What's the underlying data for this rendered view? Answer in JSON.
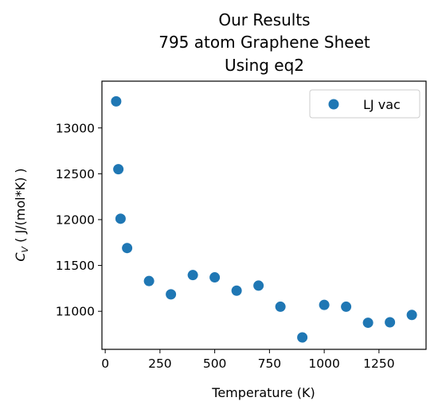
{
  "chart_data": {
    "type": "scatter",
    "title_lines": [
      "Our Results",
      "795 atom Graphene Sheet",
      "Using eq2"
    ],
    "xlabel": "Temperature (K)",
    "ylabel_var": "C",
    "ylabel_sub": "V",
    "ylabel_rest": " ( J/(mol*K) )",
    "xlim": [
      -15,
      1465
    ],
    "ylim": [
      10585,
      13510
    ],
    "xticks": [
      0,
      250,
      500,
      750,
      1000,
      1250
    ],
    "xtick_labels": [
      "0",
      "250",
      "500",
      "750",
      "1000",
      "1250"
    ],
    "yticks": [
      11000,
      11500,
      12000,
      12500,
      13000
    ],
    "ytick_labels": [
      "11000",
      "11500",
      "12000",
      "12500",
      "13000"
    ],
    "grid": false,
    "legend_position": "top-right",
    "series": [
      {
        "name": "LJ vac",
        "color": "#1f77b4",
        "x": [
          50,
          60,
          70,
          100,
          200,
          300,
          400,
          500,
          600,
          700,
          800,
          900,
          1000,
          1100,
          1200,
          1300,
          1400
        ],
        "y": [
          13290,
          12550,
          12010,
          11690,
          11330,
          11185,
          11395,
          11370,
          11225,
          11280,
          11050,
          10715,
          11070,
          11050,
          10875,
          10880,
          10960
        ]
      }
    ]
  }
}
